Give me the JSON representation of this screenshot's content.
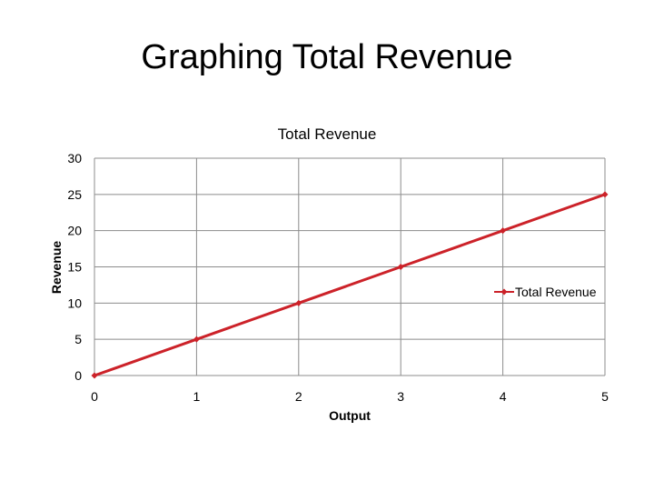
{
  "slide": {
    "title": "Graphing Total Revenue"
  },
  "colors": {
    "series": "#cc2229",
    "grid": "#8c8c8c",
    "text": "#000000"
  },
  "chart_data": {
    "type": "line",
    "title": "Total Revenue",
    "xlabel": "Output",
    "ylabel": "Revenue",
    "x": [
      0,
      1,
      2,
      3,
      4,
      5
    ],
    "xlim": [
      0,
      5
    ],
    "ylim": [
      0,
      30
    ],
    "xticks": [
      "0",
      "1",
      "2",
      "3",
      "4",
      "5"
    ],
    "yticks": [
      "0",
      "5",
      "10",
      "15",
      "20",
      "25",
      "30"
    ],
    "grid": true,
    "legend_position": "right",
    "series": [
      {
        "name": "Total Revenue",
        "values": [
          0,
          5,
          10,
          15,
          20,
          25
        ]
      }
    ]
  }
}
